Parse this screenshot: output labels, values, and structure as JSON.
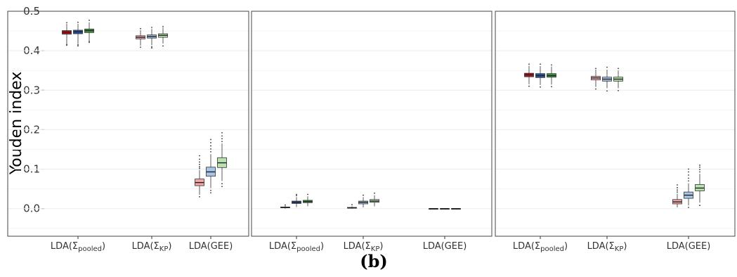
{
  "chart_data": {
    "type": "box",
    "ylabel": "Youden index",
    "ylim": [
      -0.07,
      0.5
    ],
    "yticks": [
      "0.0",
      "0.1",
      "0.2",
      "0.3",
      "0.4",
      "0.5"
    ],
    "caption": "(b)",
    "colors": {
      "pale": [
        "#f4a6a6",
        "#a7c5e8",
        "#b8e2b0"
      ],
      "dark": [
        "#c0101c",
        "#2356a6",
        "#3a9a3c"
      ]
    },
    "panels": [
      {
        "groups": [
          {
            "label": "LDA(Σpooled)",
            "fill": "dark",
            "boxes": [
              {
                "min": 0.418,
                "q1": 0.442,
                "median": 0.447,
                "q3": 0.451,
                "max": 0.468,
                "outliers": [
                  0.414,
                  0.416,
                  0.471
                ]
              },
              {
                "min": 0.417,
                "q1": 0.443,
                "median": 0.448,
                "q3": 0.452,
                "max": 0.468,
                "outliers": [
                  0.412,
                  0.415,
                  0.472
                ]
              },
              {
                "min": 0.426,
                "q1": 0.446,
                "median": 0.451,
                "q3": 0.455,
                "max": 0.472,
                "outliers": [
                  0.421,
                  0.424,
                  0.477
                ]
              }
            ]
          },
          {
            "label": "LDA(ΣKP)",
            "fill": "pale",
            "boxes": [
              {
                "min": 0.413,
                "q1": 0.43,
                "median": 0.434,
                "q3": 0.438,
                "max": 0.452,
                "outliers": [
                  0.409,
                  0.456
                ]
              },
              {
                "min": 0.414,
                "q1": 0.432,
                "median": 0.436,
                "q3": 0.44,
                "max": 0.455,
                "outliers": [
                  0.407,
                  0.41,
                  0.459
                ]
              },
              {
                "min": 0.418,
                "q1": 0.434,
                "median": 0.439,
                "q3": 0.443,
                "max": 0.458,
                "outliers": [
                  0.412,
                  0.461
                ]
              }
            ]
          },
          {
            "label": "LDA(GEE)",
            "fill": "pale",
            "boxes": [
              {
                "min": 0.035,
                "q1": 0.058,
                "median": 0.066,
                "q3": 0.075,
                "max": 0.098,
                "outliers": [
                  0.03,
                  0.102,
                  0.106,
                  0.112,
                  0.118,
                  0.125,
                  0.134
                ]
              },
              {
                "min": 0.052,
                "q1": 0.082,
                "median": 0.093,
                "q3": 0.105,
                "max": 0.138,
                "outliers": [
                  0.04,
                  0.046,
                  0.144,
                  0.151,
                  0.159,
                  0.167,
                  0.175
                ]
              },
              {
                "min": 0.07,
                "q1": 0.104,
                "median": 0.116,
                "q3": 0.129,
                "max": 0.165,
                "outliers": [
                  0.056,
                  0.063,
                  0.17,
                  0.177,
                  0.184,
                  0.192
                ]
              }
            ]
          }
        ]
      },
      {
        "groups": [
          {
            "label": "LDA(Σpooled)",
            "fill": "dark",
            "boxes": [
              {
                "min": 0.0,
                "q1": 0.002,
                "median": 0.003,
                "q3": 0.004,
                "max": 0.007,
                "outliers": [
                  0.009
                ]
              },
              {
                "min": 0.004,
                "q1": 0.013,
                "median": 0.016,
                "q3": 0.019,
                "max": 0.029,
                "outliers": [
                  0.033,
                  0.036
                ]
              },
              {
                "min": 0.006,
                "q1": 0.015,
                "median": 0.018,
                "q3": 0.021,
                "max": 0.031,
                "outliers": [
                  0.036
                ]
              }
            ]
          },
          {
            "label": "LDA(ΣKP)",
            "fill": "pale",
            "boxes": [
              {
                "min": 0.0,
                "q1": 0.001,
                "median": 0.002,
                "q3": 0.003,
                "max": 0.006,
                "outliers": [
                  0.01
                ]
              },
              {
                "min": 0.003,
                "q1": 0.012,
                "median": 0.016,
                "q3": 0.019,
                "max": 0.029,
                "outliers": [
                  0.034
                ]
              },
              {
                "min": 0.006,
                "q1": 0.016,
                "median": 0.019,
                "q3": 0.023,
                "max": 0.034,
                "outliers": [
                  0.039
                ]
              }
            ]
          },
          {
            "label": "LDA(GEE)",
            "fill": "pale",
            "boxes": [
              {
                "min": 0.0,
                "q1": 0.0,
                "median": 0.0,
                "q3": 0.0,
                "max": 0.0,
                "outliers": []
              },
              {
                "min": 0.0,
                "q1": 0.0,
                "median": 0.0,
                "q3": 0.0,
                "max": 0.0,
                "outliers": []
              },
              {
                "min": 0.0,
                "q1": 0.0,
                "median": 0.0,
                "q3": 0.0,
                "max": 0.0,
                "outliers": []
              }
            ]
          }
        ]
      },
      {
        "groups": [
          {
            "label": "LDA(Σpooled)",
            "fill": "dark",
            "boxes": [
              {
                "min": 0.315,
                "q1": 0.334,
                "median": 0.339,
                "q3": 0.343,
                "max": 0.362,
                "outliers": [
                  0.31,
                  0.366
                ]
              },
              {
                "min": 0.313,
                "q1": 0.332,
                "median": 0.337,
                "q3": 0.342,
                "max": 0.361,
                "outliers": [
                  0.308,
                  0.366
                ]
              },
              {
                "min": 0.314,
                "q1": 0.333,
                "median": 0.337,
                "q3": 0.342,
                "max": 0.36,
                "outliers": [
                  0.309,
                  0.364
                ]
              }
            ]
          },
          {
            "label": "LDA(ΣKP)",
            "fill": "pale",
            "boxes": [
              {
                "min": 0.308,
                "q1": 0.326,
                "median": 0.331,
                "q3": 0.335,
                "max": 0.352,
                "outliers": [
                  0.303,
                  0.355
                ]
              },
              {
                "min": 0.305,
                "q1": 0.323,
                "median": 0.328,
                "q3": 0.333,
                "max": 0.352,
                "outliers": [
                  0.298,
                  0.358
                ]
              },
              {
                "min": 0.305,
                "q1": 0.323,
                "median": 0.328,
                "q3": 0.333,
                "max": 0.35,
                "outliers": [
                  0.299,
                  0.355
                ]
              }
            ]
          },
          {
            "label": "LDA(GEE)",
            "fill": "pale",
            "boxes": [
              {
                "min": 0.003,
                "q1": 0.012,
                "median": 0.017,
                "q3": 0.023,
                "max": 0.038,
                "outliers": [
                  0.042,
                  0.047,
                  0.053,
                  0.06
                ]
              },
              {
                "min": 0.008,
                "q1": 0.026,
                "median": 0.034,
                "q3": 0.042,
                "max": 0.064,
                "outliers": [
                  0.003,
                  0.07,
                  0.077,
                  0.085,
                  0.093,
                  0.1
                ]
              },
              {
                "min": 0.015,
                "q1": 0.045,
                "median": 0.052,
                "q3": 0.061,
                "max": 0.088,
                "outliers": [
                  0.008,
                  0.093,
                  0.099,
                  0.105,
                  0.11
                ]
              }
            ]
          }
        ]
      }
    ]
  }
}
